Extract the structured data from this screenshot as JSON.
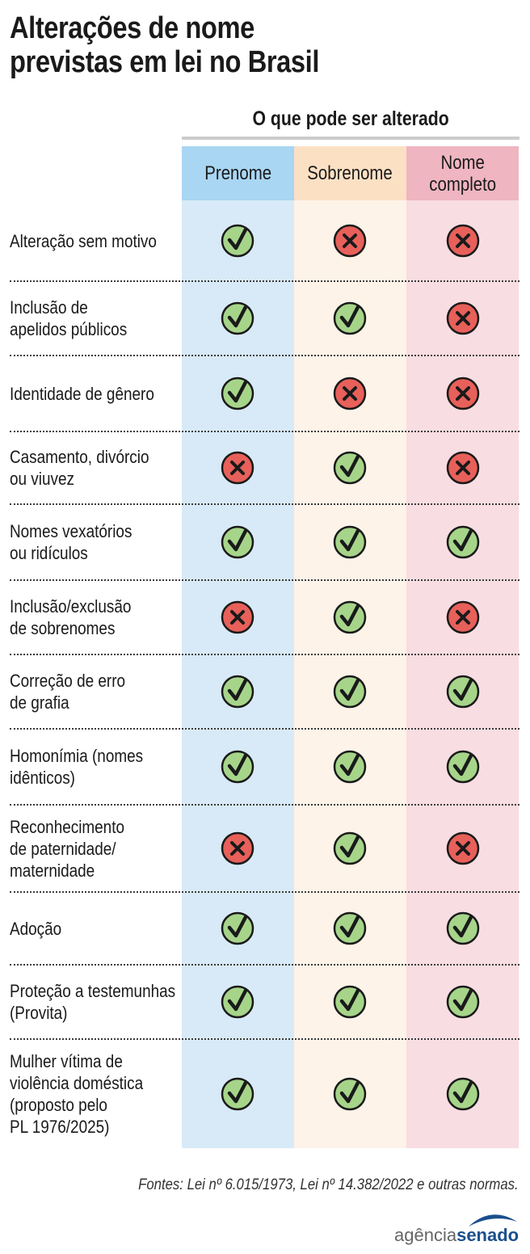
{
  "title": [
    "Alterações de nome",
    "previstas em lei no Brasil"
  ],
  "group_title": "O que pode ser alterado",
  "columns": [
    "Prenome",
    "Sobrenome",
    "Nome\ncompleto"
  ],
  "rows": [
    {
      "label": "Alteração sem motivo",
      "values": [
        true,
        false,
        false
      ]
    },
    {
      "label": "Inclusão de\napelidos públicos",
      "values": [
        true,
        true,
        false
      ]
    },
    {
      "label": "Identidade de gênero",
      "values": [
        true,
        false,
        false
      ]
    },
    {
      "label": "Casamento, divórcio\nou viuvez",
      "values": [
        false,
        true,
        false
      ]
    },
    {
      "label": "Nomes vexatórios\nou ridículos",
      "values": [
        true,
        true,
        true
      ]
    },
    {
      "label": "Inclusão/exclusão\nde sobrenomes",
      "values": [
        false,
        true,
        false
      ]
    },
    {
      "label": "Correção de erro\nde grafia",
      "values": [
        true,
        true,
        true
      ]
    },
    {
      "label": "Homonímia (nomes\nidênticos)",
      "values": [
        true,
        true,
        true
      ]
    },
    {
      "label": "Reconhecimento\nde paternidade/\nmaternidade",
      "values": [
        false,
        true,
        false
      ]
    },
    {
      "label": "Adoção",
      "values": [
        true,
        true,
        true
      ]
    },
    {
      "label": "Proteção a testemunhas\n(Provita)",
      "values": [
        true,
        true,
        true
      ]
    },
    {
      "label": "Mulher vítima de\nviolência doméstica\n(proposto pelo\nPL 1976/2025)",
      "values": [
        true,
        true,
        true
      ]
    }
  ],
  "icons": {
    "yes": "check-circle-icon",
    "no": "x-circle-icon"
  },
  "colors": {
    "check_fill": "#a6d58a",
    "cross_fill": "#e8605a",
    "col_prenome": "#d8eaf7",
    "col_sobrenome": "#fdf3e8",
    "col_nome_completo": "#f8dde2"
  },
  "footer": "Fontes: Lei nº 6.015/1973, Lei nº 14.382/2022 e outras normas.",
  "logo": {
    "part1": "agência",
    "part2": "senado"
  }
}
